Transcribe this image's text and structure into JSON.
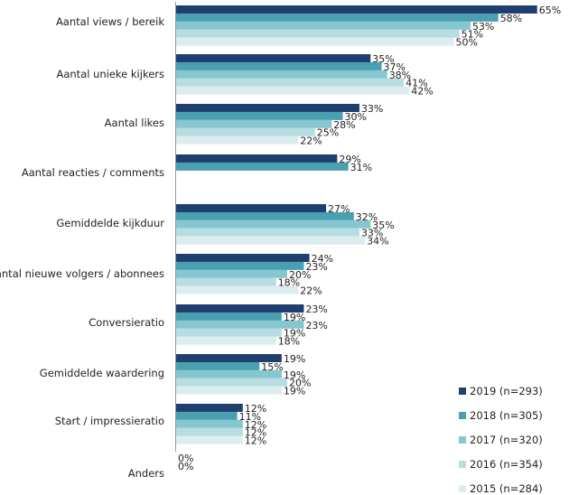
{
  "chart_data": {
    "type": "bar",
    "orientation": "horizontal",
    "categories": [
      "Aantal views / bereik",
      "Aantal unieke kijkers",
      "Aantal likes",
      "Aantal reacties / comments",
      "Gemiddelde kijkduur",
      "Aantal nieuwe volgers / abonnees",
      "Conversieratio",
      "Gemiddelde waardering",
      "Start / impressieratio",
      "Anders"
    ],
    "series": [
      {
        "name": "2019 (n=293)",
        "color": "#1f3f6e",
        "values": [
          65,
          35,
          33,
          29,
          27,
          24,
          23,
          19,
          12,
          0
        ]
      },
      {
        "name": "2018 (n=305)",
        "color": "#4aa0b0",
        "values": [
          58,
          37,
          30,
          31,
          32,
          23,
          19,
          15,
          11,
          0
        ]
      },
      {
        "name": "2017 (n=320)",
        "color": "#86c6cf",
        "values": [
          53,
          38,
          28,
          null,
          35,
          20,
          23,
          19,
          12,
          null
        ]
      },
      {
        "name": "2016 (n=354)",
        "color": "#b7dde2",
        "values": [
          51,
          41,
          25,
          null,
          33,
          18,
          19,
          20,
          12,
          null
        ]
      },
      {
        "name": "2015 (n=284)",
        "color": "#dcecef",
        "values": [
          50,
          42,
          22,
          null,
          34,
          22,
          18,
          19,
          12,
          null
        ]
      }
    ],
    "value_suffix": "%",
    "xlim": [
      0,
      65
    ],
    "grid": false,
    "legend_position": "bottom-right"
  }
}
